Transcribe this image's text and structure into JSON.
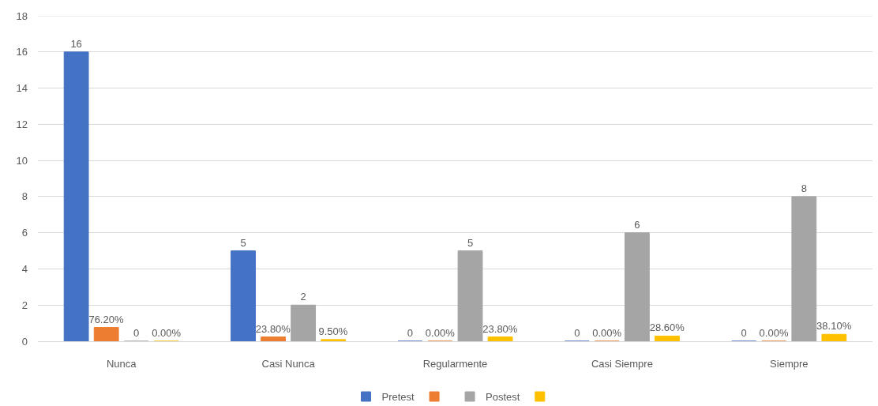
{
  "chart_data": {
    "type": "bar",
    "categories": [
      "Nunca",
      "Casi Nunca",
      "Regularmente",
      "Casi Siempre",
      "Siempre"
    ],
    "series": [
      {
        "name": "Pretest",
        "color": "#4472c4",
        "values": [
          16,
          5,
          0,
          0,
          0
        ],
        "value_labels": [
          "16",
          "5",
          "0",
          "0",
          "0"
        ]
      },
      {
        "color": "#ed7d31",
        "values": [
          0.762,
          0.238,
          0,
          0,
          0
        ],
        "value_labels": [
          "76.20%",
          "23.80%",
          "0.00%",
          "0.00%",
          "0.00%"
        ]
      },
      {
        "name": "Postest",
        "color": "#a5a5a5",
        "values": [
          0,
          2,
          5,
          6,
          8
        ],
        "value_labels": [
          "0",
          "2",
          "5",
          "6",
          "8"
        ]
      },
      {
        "color": "#ffc000",
        "values": [
          0,
          0.095,
          0.238,
          0.286,
          0.381
        ],
        "value_labels": [
          "0.00%",
          "9.50%",
          "23.80%",
          "28.60%",
          "38.10%"
        ]
      }
    ],
    "ylim": [
      0,
      18
    ],
    "yticks": [
      0,
      2,
      4,
      6,
      8,
      10,
      12,
      14,
      16,
      18
    ],
    "grid": "y",
    "legend": "bottom"
  }
}
